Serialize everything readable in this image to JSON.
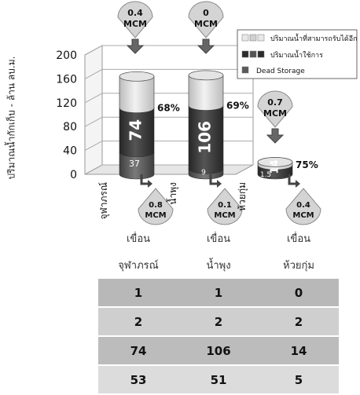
{
  "chart_data": {
    "type": "bar",
    "stacked": true,
    "ylabel": "ปริมาณน้ำกักเก็บ - ล้าน ลบ.ม.",
    "ylim": [
      0,
      200
    ],
    "yticks": [
      0,
      40,
      80,
      120,
      160,
      200
    ],
    "categories": [
      "จุฬาภรณ์",
      "น้ำพุง",
      "ห้วยกุ่ม"
    ],
    "series": [
      {
        "name": "Dead Storage",
        "values": [
          37,
          9,
          1.5
        ],
        "labels": [
          "37",
          "9",
          "1.5"
        ],
        "color": "#5a5a5a"
      },
      {
        "name": "ปริมาณน้ำใช้การ",
        "values": [
          74,
          106,
          14
        ],
        "labels": [
          "74",
          "106",
          "14"
        ],
        "color": "#3c3c3c"
      },
      {
        "name": "ปริมาณน้ำที่สามารถรับได้อีก",
        "values": [
          53,
          51,
          5
        ],
        "color": "#d9d9d9"
      }
    ],
    "percent_labels": [
      "68%",
      "69%",
      "75%"
    ],
    "inflow": [
      "0.4 MCM",
      "0 MCM",
      "0.7 MCM"
    ],
    "outflow": [
      "0.8 MCM",
      "0.1 MCM",
      "0.4 MCM"
    ],
    "legend_position": "top-right"
  },
  "table": {
    "header_line1": [
      "เขื่อน",
      "เขื่อน",
      "เขื่อน"
    ],
    "header_line2": [
      "จุฬาภรณ์",
      "น้ำพุง",
      "ห้วยกุ่ม"
    ],
    "rows": [
      [
        "1",
        "1",
        "0"
      ],
      [
        "2",
        "2",
        "2"
      ],
      [
        "74",
        "106",
        "14"
      ],
      [
        "53",
        "51",
        "5"
      ]
    ]
  }
}
